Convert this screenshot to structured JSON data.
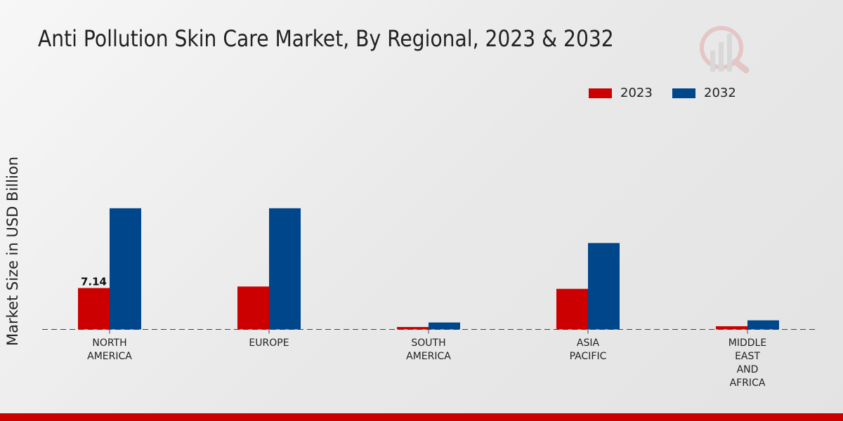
{
  "colors": {
    "2023": "#cc0000",
    "2032": "#00468b"
  },
  "chart_data": {
    "type": "bar",
    "title": "Anti Pollution Skin Care Market, By Regional, 2023 & 2032",
    "xlabel": "",
    "ylabel": "Market Size in USD Billion",
    "categories": [
      [
        "NORTH",
        "AMERICA"
      ],
      [
        "EUROPE"
      ],
      [
        "SOUTH",
        "AMERICA"
      ],
      [
        "ASIA",
        "PACIFIC"
      ],
      [
        "MIDDLE",
        "EAST",
        "AND",
        "AFRICA"
      ]
    ],
    "series": [
      {
        "name": "2023",
        "values": [
          7.14,
          7.4,
          0.42,
          7.0,
          0.55
        ]
      },
      {
        "name": "2032",
        "values": [
          20.9,
          20.9,
          1.2,
          14.9,
          1.57
        ]
      }
    ],
    "data_labels": [
      {
        "series": "2023",
        "category_index": 0,
        "text": "7.14"
      }
    ],
    "ylim": [
      0,
      25
    ],
    "grid": false,
    "legend_position": "top-right"
  }
}
